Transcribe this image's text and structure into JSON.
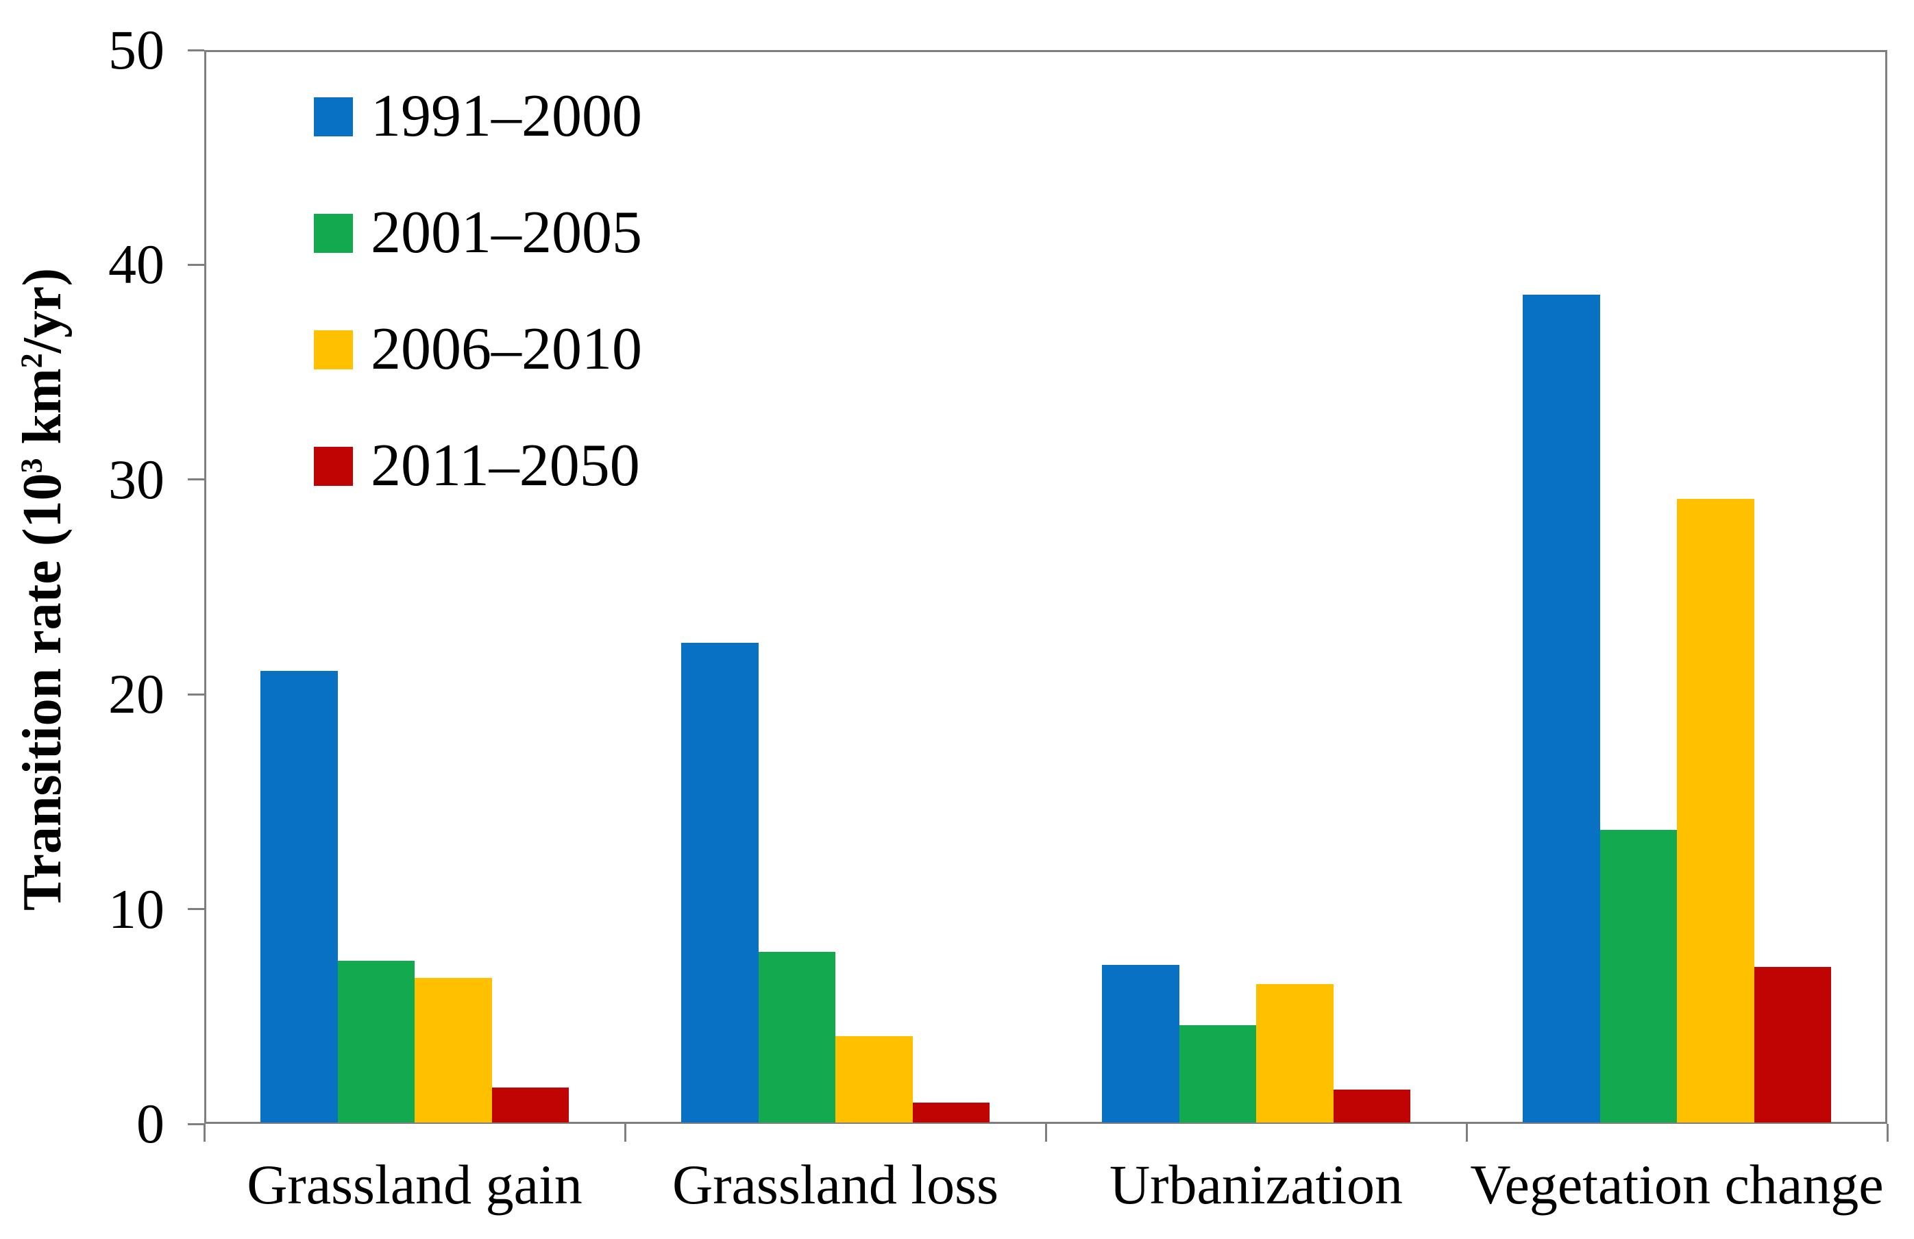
{
  "figure": {
    "background": "#ffffff",
    "axis_color": "#7f7f7f"
  },
  "chart_data": {
    "type": "bar",
    "title": "",
    "xlabel": "",
    "ylabel": "Transition rate (10³ km²/yr)",
    "ylabel_segments": [
      {
        "text": "Transition rate (10"
      },
      {
        "sup": "3"
      },
      {
        "text": " km"
      },
      {
        "sup": "2"
      },
      {
        "text": "/yr)"
      }
    ],
    "categories": [
      "Grassland gain",
      "Grassland loss",
      "Urbanization",
      "Vegetation change"
    ],
    "series": [
      {
        "name": "1991–2000",
        "color": "#0971c3",
        "values": [
          21.1,
          22.4,
          7.4,
          38.6
        ]
      },
      {
        "name": "2001–2005",
        "color": "#13a94e",
        "values": [
          7.6,
          8.0,
          4.6,
          13.7
        ]
      },
      {
        "name": "2006–2010",
        "color": "#ffc000",
        "values": [
          6.8,
          4.1,
          6.5,
          29.1
        ]
      },
      {
        "name": "2011–2050",
        "color": "#c00404",
        "values": [
          1.7,
          1.0,
          1.6,
          7.3
        ]
      }
    ],
    "ylim": [
      0,
      50
    ],
    "yticks": [
      0,
      10,
      20,
      30,
      40,
      50
    ],
    "grid": false,
    "legend_position": "top-left-inside"
  }
}
